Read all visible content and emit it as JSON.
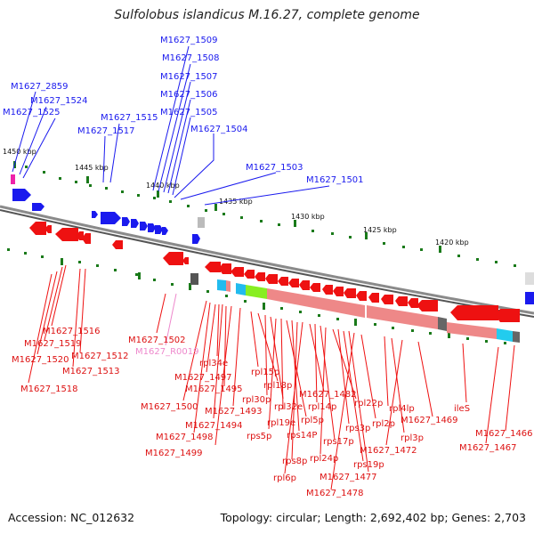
{
  "title": "Sulfolobus islandicus M.16.27, complete genome",
  "footer": {
    "accession": "Accession: NC_012632",
    "topology": "Topology: circular; Length: 2,692,402 bp; Genes: 2,703"
  },
  "colors": {
    "backbone": "#7f7f7f",
    "forward_gene": "#1a1aee",
    "reverse_gene": "#ee1111",
    "rna_gene": "#ee88cc",
    "tick": "#1a7a1a",
    "pink_feature": "#ee8888",
    "green_feature": "#88ee22",
    "cyan_feature": "#22ccee",
    "gray_feature": "#666666"
  },
  "axis_ticks": [
    "1450 kbp",
    "1445 kbp",
    "1440 kbp",
    "1435 kbp",
    "1430 kbp",
    "1425 kbp",
    "1420 kbp"
  ],
  "forward_labels": [
    "M1627_1509",
    "M1627_1508",
    "M1627_1507",
    "M1627_1506",
    "M1627_1505",
    "M1627_1504",
    "M1627_1503",
    "M1627_1501",
    "M1627_2859",
    "M1627_1524",
    "M1627_1525",
    "M1627_1515",
    "M1627_1517"
  ],
  "reverse_labels": [
    "M1627_1516",
    "M1627_1519",
    "M1627_1520",
    "M1627_1518",
    "M1627_1512",
    "M1627_1513",
    "M1627_1502",
    "M1627_R0019",
    "rpl34e",
    "M1627_1497",
    "M1627_1495",
    "M1627_1500",
    "M1627_1493",
    "M1627_1494",
    "M1627_1498",
    "M1627_1499",
    "rpl15p",
    "rpl18p",
    "rpl30p",
    "rpl32e",
    "rpl19e",
    "rps5p",
    "rpl5p",
    "rps14P",
    "rps8p",
    "rpl6p",
    "M1627_1482",
    "rpl14p",
    "rps17p",
    "rpl24p",
    "rpl22p",
    "rps3p",
    "rps19p",
    "M1627_1477",
    "M1627_1478",
    "rpl2p",
    "rpl4lp",
    "rpl3p",
    "M1627_1472",
    "M1627_1469",
    "ileS",
    "M1627_1466",
    "M1627_1467"
  ]
}
